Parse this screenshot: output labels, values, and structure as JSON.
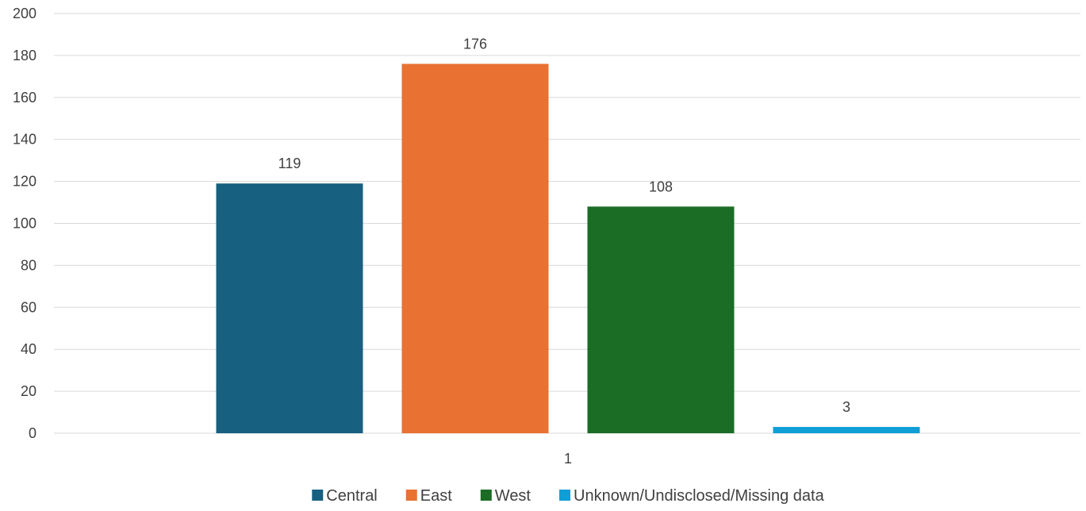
{
  "chart_data": {
    "type": "bar",
    "categories": [
      "1"
    ],
    "series": [
      {
        "name": "Central",
        "values": [
          119
        ],
        "color": "#17607f"
      },
      {
        "name": "East",
        "values": [
          176
        ],
        "color": "#e97132"
      },
      {
        "name": "West",
        "values": [
          108
        ],
        "color": "#1b6c25"
      },
      {
        "name": "Unknown/Undisclosed/Missing data",
        "values": [
          3
        ],
        "color": "#0f9ed5"
      }
    ],
    "y_ticks": [
      "0",
      "20",
      "40",
      "60",
      "80",
      "100",
      "120",
      "140",
      "160",
      "180",
      "200"
    ],
    "ylim": [
      0,
      200
    ],
    "grid": true,
    "legend_position": "bottom",
    "data_labels": true
  }
}
